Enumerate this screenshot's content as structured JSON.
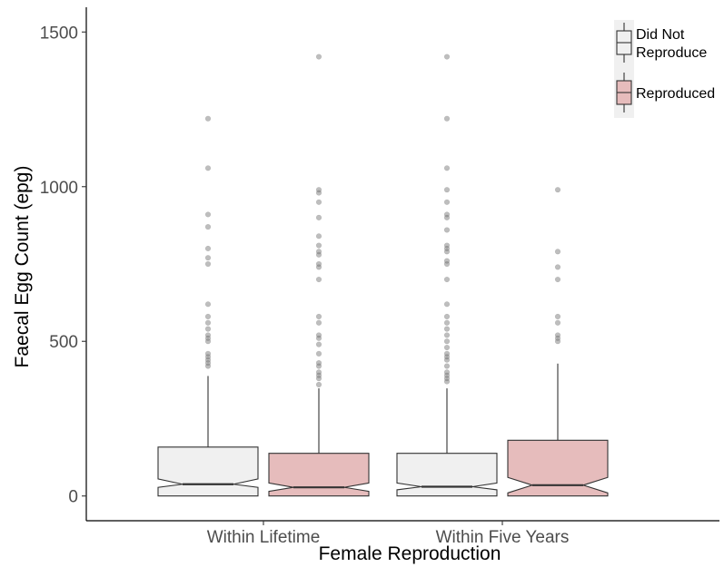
{
  "chart_data": {
    "type": "boxplot",
    "title": "",
    "xlabel": "Female Reproduction",
    "ylabel": "Faecal Egg Count (epg)",
    "ylim": [
      -80,
      1580
    ],
    "yticks": [
      0,
      500,
      1000,
      1500
    ],
    "grid": false,
    "categories": [
      "Within Lifetime",
      "Within Five Years"
    ],
    "legend": {
      "position": "top-right",
      "entries": [
        {
          "label": "Did Not\nReproduce",
          "fill": "#f0f0f0"
        },
        {
          "label": "Reproduced",
          "fill": "#e6bcbc"
        }
      ]
    },
    "series": [
      {
        "name": "Did Not Reproduce",
        "fill": "#f0f0f0",
        "boxes": [
          {
            "category": "Within Lifetime",
            "q1": 0,
            "median": 38,
            "q3": 158,
            "whisker_low": 0,
            "whisker_high": 388,
            "notch_low": 28,
            "notch_high": 55,
            "outliers": [
              420,
              430,
              440,
              450,
              460,
              500,
              510,
              520,
              540,
              560,
              580,
              620,
              750,
              770,
              800,
              870,
              910,
              1060,
              1220
            ]
          },
          {
            "category": "Within Five Years",
            "q1": 0,
            "median": 30,
            "q3": 138,
            "whisker_low": 0,
            "whisker_high": 348,
            "notch_low": 20,
            "notch_high": 42,
            "outliers": [
              370,
              380,
              390,
              400,
              420,
              440,
              450,
              460,
              480,
              500,
              520,
              540,
              560,
              580,
              620,
              700,
              750,
              760,
              790,
              800,
              810,
              860,
              900,
              910,
              950,
              990,
              1060,
              1220,
              1420
            ]
          }
        ]
      },
      {
        "name": "Reproduced",
        "fill": "#e6bcbc",
        "boxes": [
          {
            "category": "Within Lifetime",
            "q1": 0,
            "median": 28,
            "q3": 138,
            "whisker_low": 0,
            "whisker_high": 348,
            "notch_low": 15,
            "notch_high": 42,
            "outliers": [
              360,
              380,
              390,
              400,
              420,
              430,
              460,
              490,
              510,
              520,
              560,
              580,
              700,
              740,
              750,
              780,
              790,
              810,
              840,
              900,
              950,
              980,
              990,
              1420
            ]
          },
          {
            "category": "Within Five Years",
            "q1": 0,
            "median": 35,
            "q3": 180,
            "whisker_low": 0,
            "whisker_high": 428,
            "notch_low": 10,
            "notch_high": 60,
            "outliers": [
              500,
              510,
              520,
              560,
              580,
              700,
              740,
              790,
              990
            ]
          }
        ]
      }
    ]
  }
}
